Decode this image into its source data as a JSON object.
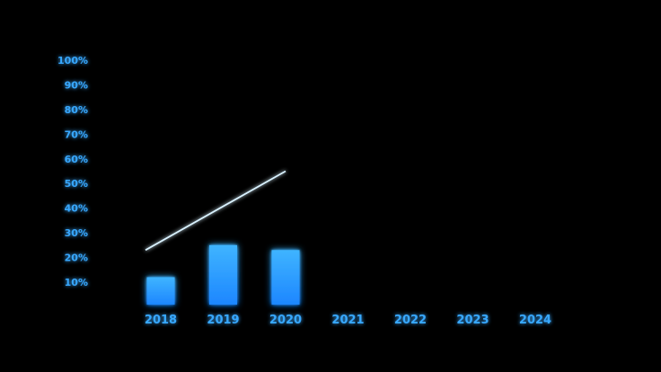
{
  "chart_data": {
    "type": "bar",
    "title": "",
    "xlabel": "",
    "ylabel": "",
    "categories": [
      "2018",
      "2019",
      "2020",
      "2021",
      "2022",
      "2023",
      "2024"
    ],
    "values": [
      12,
      25,
      23,
      null,
      null,
      null,
      null
    ],
    "ylim": [
      0,
      100
    ],
    "y_ticks": [
      "10%",
      "20%",
      "30%",
      "40%",
      "50%",
      "60%",
      "70%",
      "80%",
      "90%",
      "100%"
    ],
    "y_tick_values": [
      10,
      20,
      30,
      40,
      50,
      60,
      70,
      80,
      90,
      100
    ],
    "trend_line": {
      "x_start": "2018",
      "y_start": 23,
      "x_end": "2020",
      "y_end": 55
    },
    "grid": false,
    "legend": "none"
  },
  "colors": {
    "background": "#000000",
    "axis": "#6fd0ff",
    "axis_glow": "#1e7cff",
    "bar_top": "#3fb4ff",
    "bar_bottom": "#1d86ff",
    "tick_text": "#37a8ff",
    "trend_line": "#d9f2ff"
  }
}
